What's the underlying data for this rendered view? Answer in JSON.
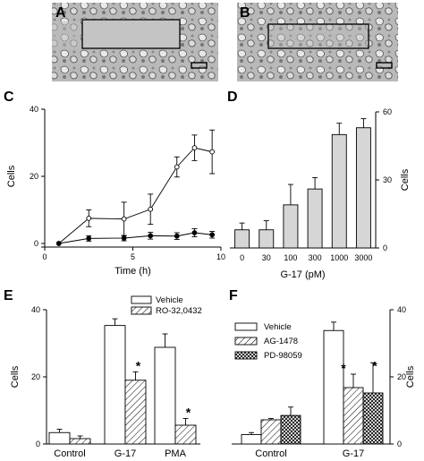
{
  "panels": {
    "A": "A",
    "B": "B",
    "C": "C",
    "D": "D",
    "E": "E",
    "F": "F"
  },
  "chart_data": [
    {
      "panel": "C",
      "type": "line",
      "xlabel": "Time  (h)",
      "ylabel": "Cells",
      "xlim": [
        0,
        10
      ],
      "ylim": [
        0,
        40
      ],
      "xticks": [
        0,
        5,
        10
      ],
      "yticks": [
        0,
        20,
        40
      ],
      "series": [
        {
          "marker": "open-circle",
          "x": [
            0.8,
            2.5,
            4.5,
            6.0,
            7.5,
            8.5,
            9.5
          ],
          "y": [
            0,
            7.5,
            7.3,
            10.2,
            22.8,
            28.5,
            27.3
          ],
          "err": [
            0,
            2.5,
            5.0,
            4.5,
            3.0,
            3.8,
            6.5
          ]
        },
        {
          "marker": "filled-circle",
          "x": [
            0.8,
            2.5,
            4.5,
            6.0,
            7.5,
            8.5,
            9.5
          ],
          "y": [
            0,
            1.5,
            1.6,
            2.3,
            2.2,
            3.2,
            2.6
          ],
          "err": [
            0,
            0.8,
            0.8,
            1.0,
            1.0,
            1.2,
            1.0
          ]
        }
      ]
    },
    {
      "panel": "D",
      "type": "bar",
      "xlabel": "G-17  (pM)",
      "ylabel": "Cells",
      "categories": [
        "0",
        "30",
        "100",
        "300",
        "1000",
        "3000"
      ],
      "values": [
        8,
        8,
        19,
        26,
        50,
        53
      ],
      "err": [
        3,
        4,
        9,
        5,
        5,
        4
      ],
      "ylim": [
        0,
        60
      ],
      "yticks": [
        0,
        30,
        60
      ],
      "yaxis_side": "right"
    },
    {
      "panel": "E",
      "type": "bar",
      "ylabel": "Cells",
      "categories": [
        "Control",
        "G-17",
        "PMA"
      ],
      "ylim": [
        0,
        40
      ],
      "yticks": [
        0,
        20,
        40
      ],
      "series": [
        {
          "name": "Vehicle",
          "pattern": "open",
          "values": [
            3.4,
            35.3,
            28.8
          ],
          "err": [
            1.0,
            2.0,
            4.0
          ]
        },
        {
          "name": "RO-32,0432",
          "pattern": "hatched",
          "values": [
            1.6,
            19.0,
            5.6
          ],
          "err": [
            0.8,
            2.5,
            2.0
          ]
        }
      ],
      "annotations": [
        "*",
        "*"
      ]
    },
    {
      "panel": "F",
      "type": "bar",
      "ylabel": "Cells",
      "categories": [
        "Control",
        "G-17"
      ],
      "ylim": [
        0,
        40
      ],
      "yticks": [
        0,
        20,
        40
      ],
      "yaxis_side": "right",
      "series": [
        {
          "name": "Vehicle",
          "pattern": "open",
          "values": [
            2.8,
            33.8
          ],
          "err": [
            0.6,
            2.5
          ]
        },
        {
          "name": "AG-1478",
          "pattern": "hatched",
          "values": [
            7.2,
            16.8
          ],
          "err": [
            0.4,
            4.0
          ]
        },
        {
          "name": "PD-98059",
          "pattern": "crosshatch",
          "values": [
            8.5,
            15.2
          ],
          "err": [
            2.5,
            9.0
          ]
        }
      ],
      "annotations": [
        "*",
        "*"
      ]
    }
  ]
}
